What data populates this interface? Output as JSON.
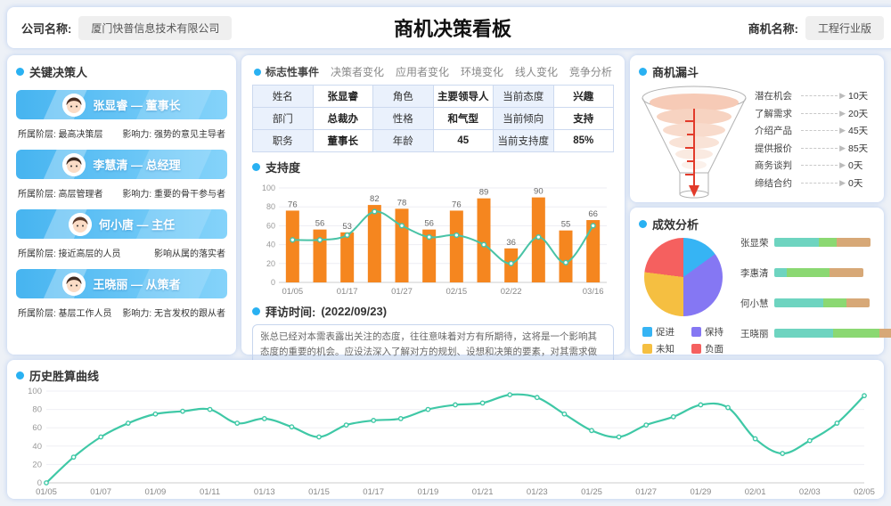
{
  "header": {
    "company_label": "公司名称:",
    "company_value": "厦门快普信息技术有限公司",
    "title": "商机决策看板",
    "opportunity_label": "商机名称:",
    "opportunity_value": "工程行业版"
  },
  "key_people_panel": {
    "title": "关键决策人",
    "people": [
      {
        "name_line": "张显睿 — 董事长",
        "attr_left": "所属阶层: 最高决策层",
        "attr_right": "影响力: 强势的意见主导者"
      },
      {
        "name_line": "李慧清 — 总经理",
        "attr_left": "所属阶层: 高层管理者",
        "attr_right": "影响力: 重要的骨干参与者"
      },
      {
        "name_line": "何小唐 — 主任",
        "attr_left": "所属阶层: 接近高层的人员",
        "attr_right": "影响从属的落实者"
      },
      {
        "name_line": "王晓丽 — 从策者",
        "attr_left": "所属阶层: 基层工作人员",
        "attr_right": "影响力: 无言发权的跟从者"
      }
    ]
  },
  "middle_panel": {
    "tabs": [
      "标志性事件",
      "决策者变化",
      "应用者变化",
      "环境变化",
      "线人变化",
      "竞争分析"
    ],
    "active_tab": "标志性事件",
    "table_rows": [
      [
        "姓名",
        "张显睿",
        "角色",
        "主要领导人",
        "当前态度",
        "兴趣"
      ],
      [
        "部门",
        "总裁办",
        "性格",
        "和气型",
        "当前倾向",
        "支持"
      ],
      [
        "职务",
        "董事长",
        "年龄",
        "45",
        "当前支持度",
        "85%"
      ]
    ],
    "support_title": "支持度",
    "visit_label": "拜访时间:",
    "visit_date": "(2022/09/23)",
    "visit_text": "张总已经对本需表露出关注的态度，往往意味着对方有所期待，这将是一个影响其态度的重要的机会。应设法深入了解对方的规划、设想和决策的要素，对其需求做出积极的回应，并留心竞争对手的动向。回应的策略应注意强化己方的优势，突出差异，陈述双赢的前景。目前对..."
  },
  "funnel_panel": {
    "title": "商机漏斗",
    "stages": [
      {
        "label": "潜在机会",
        "value": "10天"
      },
      {
        "label": "了解需求",
        "value": "20天"
      },
      {
        "label": "介绍产品",
        "value": "45天"
      },
      {
        "label": "提供报价",
        "value": "85天"
      },
      {
        "label": "商务谈判",
        "value": "0天"
      },
      {
        "label": "缔结合约",
        "value": "0天"
      }
    ]
  },
  "effect_panel": {
    "title": "成效分析",
    "legend": [
      {
        "label": "促进",
        "color": "#36b4f4"
      },
      {
        "label": "保持",
        "color": "#8577f3"
      },
      {
        "label": "未知",
        "color": "#f5bf41"
      },
      {
        "label": "负面",
        "color": "#f5605f"
      }
    ]
  },
  "history_panel": {
    "title": "历史胜算曲线"
  },
  "chart_data": [
    {
      "id": "support",
      "type": "bar+line",
      "title": "支持度",
      "categories": [
        "01/05",
        "",
        "01/17",
        "",
        "01/27",
        "",
        "02/15",
        "",
        "02/22",
        "",
        "",
        "03/16"
      ],
      "bar_values": [
        76,
        56,
        53,
        82,
        78,
        56,
        76,
        89,
        36,
        90,
        55,
        66
      ],
      "line_values": [
        45,
        45,
        50,
        75,
        60,
        48,
        50,
        40,
        20,
        48,
        21,
        60
      ],
      "ylim": [
        0,
        100
      ],
      "yticks": [
        0,
        20,
        40,
        60,
        80,
        100
      ],
      "bar_color": "#f5861f",
      "line_color": "#49c3a6",
      "grid": true
    },
    {
      "id": "effect_pie",
      "type": "pie",
      "labels": [
        "促进",
        "保持",
        "未知",
        "负面"
      ],
      "values": [
        15,
        35,
        27,
        23
      ],
      "colors": [
        "#36b4f4",
        "#8577f3",
        "#f5bf41",
        "#f5605f"
      ],
      "legend_position": "bottom-left"
    },
    {
      "id": "effect_bars",
      "type": "stacked_bar_h",
      "names": [
        "张显荣",
        "李惠清",
        "何小慧",
        "王晓丽"
      ],
      "segments": [
        [
          50,
          20,
          38
        ],
        [
          14,
          48,
          38
        ],
        [
          55,
          26,
          26
        ],
        [
          66,
          52,
          28
        ]
      ],
      "colors": [
        "#6ed4c0",
        "#8bd872",
        "#d7a877"
      ]
    },
    {
      "id": "history",
      "type": "line",
      "title": "历史胜算曲线",
      "x_labels": [
        "01/05",
        "01/07",
        "01/09",
        "01/11",
        "01/13",
        "01/15",
        "01/17",
        "01/19",
        "01/21",
        "01/23",
        "01/25",
        "01/27",
        "01/29",
        "02/01",
        "02/03",
        "02/05"
      ],
      "values": [
        0,
        28,
        50,
        65,
        75,
        78,
        80,
        65,
        70,
        61,
        50,
        63,
        68,
        70,
        80,
        85,
        87,
        96,
        93,
        75,
        57,
        50,
        63,
        72,
        85,
        82,
        48,
        32,
        46,
        65,
        95
      ],
      "ylim": [
        0,
        100
      ],
      "yticks": [
        0,
        20,
        40,
        60,
        80,
        100
      ],
      "line_color": "#3fc8a6",
      "grid": true
    }
  ]
}
